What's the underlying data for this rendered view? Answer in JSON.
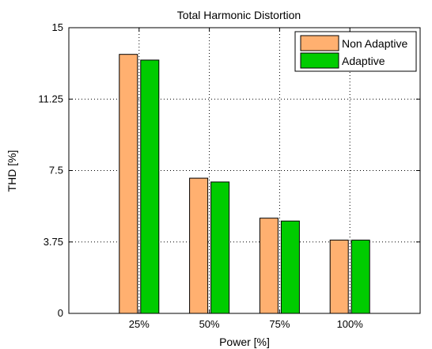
{
  "chart_data": {
    "type": "bar",
    "title": "Total Harmonic Distortion",
    "xlabel": "Power [%]",
    "ylabel": "THD [%]",
    "categories": [
      "25%",
      "50%",
      "75%",
      "100%"
    ],
    "ylim": [
      0,
      15
    ],
    "yticks": [
      "0",
      "3.75",
      "7.5",
      "11.25",
      "15"
    ],
    "grid": true,
    "legend_position": "top-right",
    "series": [
      {
        "name": "Non Adaptive",
        "color": "#FFB070",
        "values": [
          13.6,
          7.1,
          5.0,
          3.85
        ]
      },
      {
        "name": "Adaptive",
        "color": "#00CC00",
        "values": [
          13.3,
          6.9,
          4.85,
          3.85
        ]
      }
    ]
  }
}
